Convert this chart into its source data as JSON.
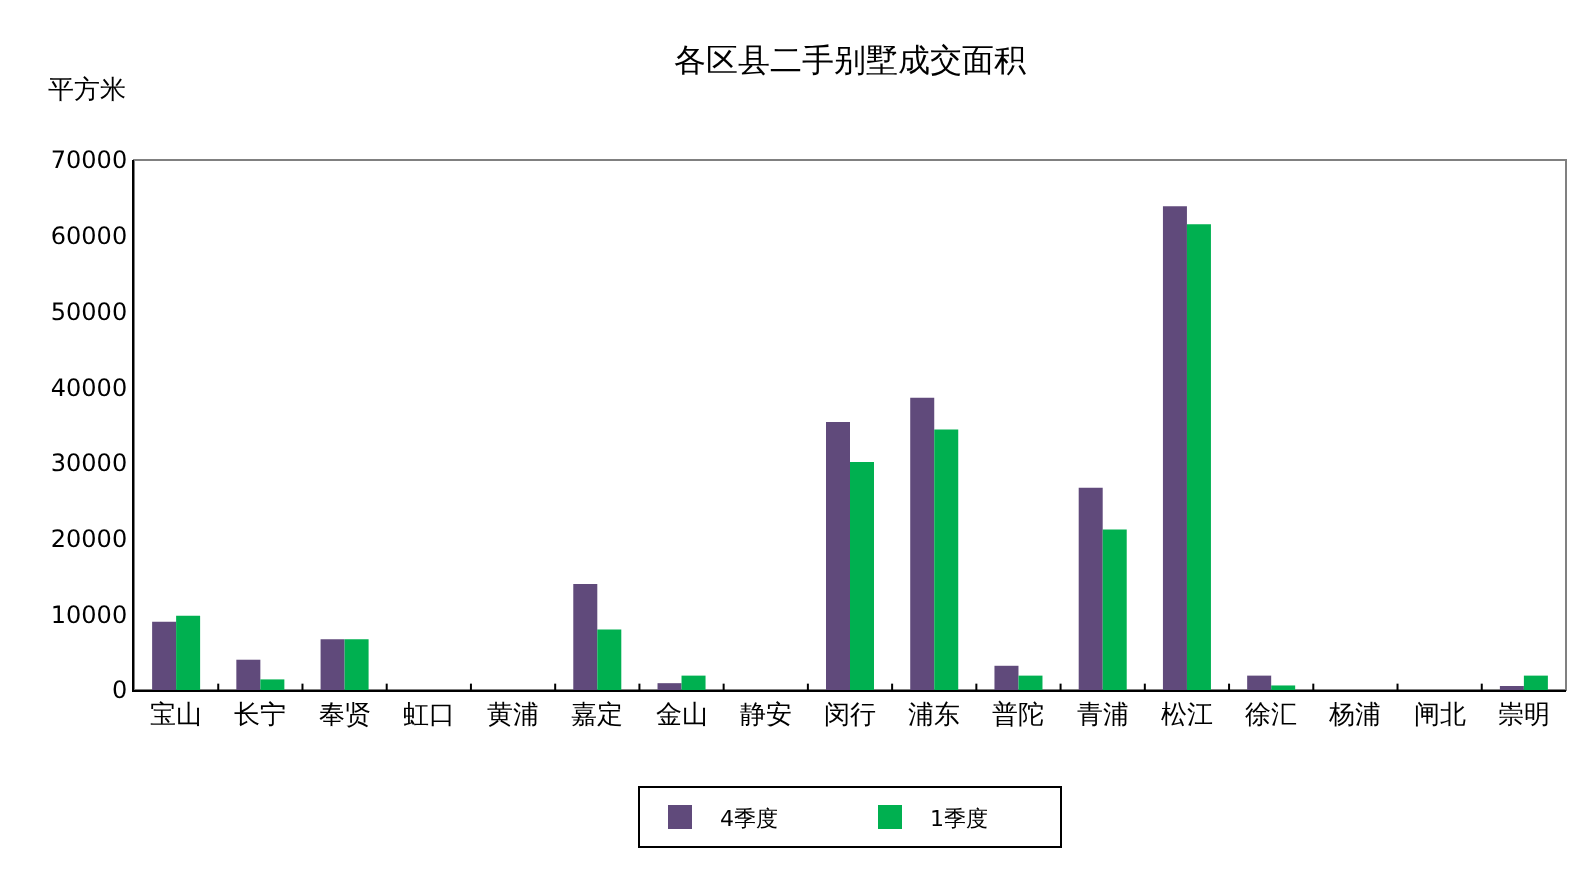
{
  "chart_data": {
    "type": "bar",
    "title": "各区县二手别墅成交面积",
    "ylabel": "平方米",
    "categories": [
      "宝山",
      "长宁",
      "奉贤",
      "虹口",
      "黄浦",
      "嘉定",
      "金山",
      "静安",
      "闵行",
      "浦东",
      "普陀",
      "青浦",
      "松江",
      "徐汇",
      "杨浦",
      "闸北",
      "崇明"
    ],
    "series": [
      {
        "name": "4季度",
        "color": "#604a7b",
        "values": [
          9000,
          4000,
          6700,
          0,
          0,
          14000,
          900,
          0,
          35400,
          38600,
          3200,
          26700,
          63900,
          1900,
          0,
          0,
          300
        ]
      },
      {
        "name": "1季度",
        "color": "#00b050",
        "values": [
          9800,
          1400,
          6700,
          0,
          0,
          8000,
          1900,
          0,
          30100,
          34400,
          1900,
          21200,
          61500,
          600,
          0,
          0,
          1900
        ]
      }
    ],
    "ylim": [
      0,
      70000
    ],
    "yticks": [
      0,
      10000,
      20000,
      30000,
      40000,
      50000,
      60000,
      70000
    ],
    "legend": "bottom"
  }
}
